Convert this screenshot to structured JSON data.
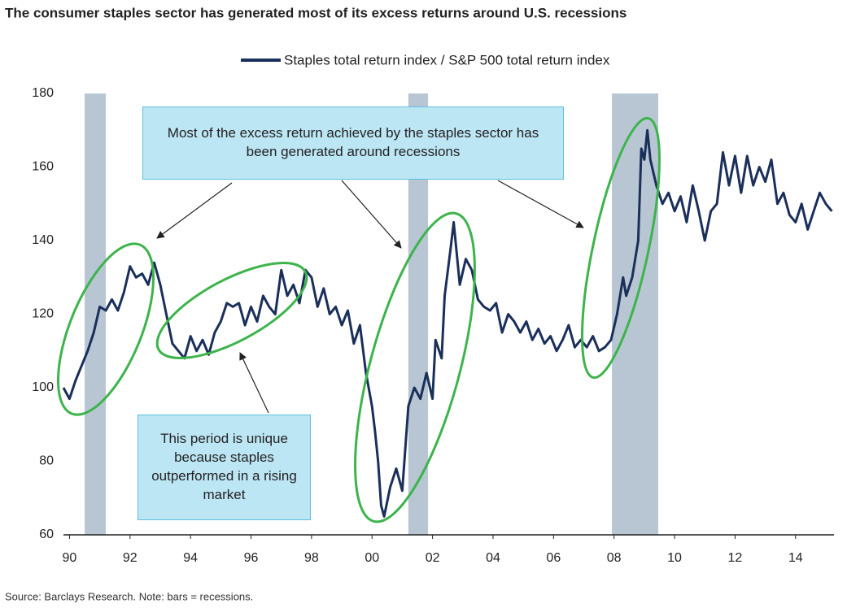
{
  "chart_data": {
    "type": "line",
    "title": "The consumer staples sector has generated most of its excess returns around U.S. recessions",
    "source": "Source: Barclays Research. Note: bars = recessions.",
    "legend": "top",
    "x": [
      1989.8,
      1990.0,
      1990.2,
      1990.4,
      1990.6,
      1990.8,
      1991.0,
      1991.2,
      1991.4,
      1991.6,
      1991.8,
      1992.0,
      1992.2,
      1992.4,
      1992.6,
      1992.8,
      1993.0,
      1993.2,
      1993.4,
      1993.6,
      1993.8,
      1994.0,
      1994.2,
      1994.4,
      1994.6,
      1994.8,
      1995.0,
      1995.2,
      1995.4,
      1995.6,
      1995.8,
      1996.0,
      1996.2,
      1996.4,
      1996.6,
      1996.8,
      1997.0,
      1997.2,
      1997.4,
      1997.6,
      1997.8,
      1998.0,
      1998.2,
      1998.4,
      1998.6,
      1998.8,
      1999.0,
      1999.2,
      1999.4,
      1999.6,
      1999.8,
      2000.0,
      2000.1,
      2000.2,
      2000.3,
      2000.4,
      2000.6,
      2000.8,
      2001.0,
      2001.2,
      2001.4,
      2001.6,
      2001.8,
      2002.0,
      2002.1,
      2002.3,
      2002.4,
      2002.6,
      2002.7,
      2002.9,
      2003.1,
      2003.3,
      2003.5,
      2003.7,
      2003.9,
      2004.1,
      2004.3,
      2004.5,
      2004.7,
      2004.9,
      2005.1,
      2005.3,
      2005.5,
      2005.7,
      2005.9,
      2006.1,
      2006.3,
      2006.5,
      2006.7,
      2006.9,
      2007.1,
      2007.3,
      2007.5,
      2007.7,
      2007.9,
      2008.1,
      2008.3,
      2008.4,
      2008.6,
      2008.8,
      2008.9,
      2009.0,
      2009.1,
      2009.2,
      2009.4,
      2009.6,
      2009.8,
      2010.0,
      2010.2,
      2010.4,
      2010.6,
      2010.8,
      2011.0,
      2011.2,
      2011.4,
      2011.6,
      2011.8,
      2012.0,
      2012.2,
      2012.4,
      2012.6,
      2012.8,
      2013.0,
      2013.2,
      2013.4,
      2013.6,
      2013.8,
      2014.0,
      2014.2,
      2014.4,
      2014.6,
      2014.8,
      2015.0,
      2015.2
    ],
    "series": [
      {
        "name": "Staples total return index / S&P 500 total return index",
        "color": "#1a2f5a",
        "values": [
          100,
          97,
          102,
          106,
          110,
          115,
          122,
          121,
          124,
          121,
          126,
          133,
          130,
          131,
          128,
          134,
          128,
          120,
          112,
          110,
          108,
          114,
          110,
          113,
          109,
          115,
          118,
          123,
          122,
          123,
          117,
          122,
          118,
          125,
          122,
          120,
          132,
          125,
          128,
          123,
          132,
          130,
          122,
          127,
          120,
          122,
          117,
          121,
          112,
          117,
          104,
          95,
          88,
          80,
          68,
          65,
          73,
          78,
          72,
          95,
          100,
          97,
          104,
          97,
          113,
          108,
          125,
          138,
          145,
          128,
          135,
          132,
          124,
          122,
          121,
          123,
          115,
          120,
          118,
          115,
          118,
          113,
          116,
          112,
          114,
          110,
          113,
          117,
          111,
          113,
          111,
          114,
          110,
          111,
          113,
          120,
          130,
          125,
          130,
          140,
          165,
          162,
          170,
          162,
          155,
          150,
          153,
          148,
          152,
          145,
          155,
          148,
          140,
          148,
          150,
          164,
          155,
          163,
          153,
          163,
          155,
          160,
          156,
          162,
          150,
          153,
          147,
          145,
          150,
          143,
          148,
          153,
          150,
          148
        ]
      }
    ],
    "recessions": [
      [
        1990.5,
        1991.2
      ],
      [
        2001.2,
        2001.85
      ],
      [
        2007.93,
        2009.46
      ]
    ],
    "recession_color": "#b8c6d3",
    "xlim": [
      1989.8,
      2015.27
    ],
    "xticks": [
      {
        "value": 1990,
        "label": "90"
      },
      {
        "value": 1992,
        "label": "92"
      },
      {
        "value": 1994,
        "label": "94"
      },
      {
        "value": 1996,
        "label": "96"
      },
      {
        "value": 1998,
        "label": "98"
      },
      {
        "value": 2000,
        "label": "00"
      },
      {
        "value": 2002,
        "label": "02"
      },
      {
        "value": 2004,
        "label": "04"
      },
      {
        "value": 2006,
        "label": "06"
      },
      {
        "value": 2008,
        "label": "08"
      },
      {
        "value": 2010,
        "label": "10"
      },
      {
        "value": 2012,
        "label": "12"
      },
      {
        "value": 2014,
        "label": "14"
      }
    ],
    "ylim": [
      60,
      180
    ],
    "yticks": [
      60,
      80,
      100,
      120,
      140,
      160,
      180
    ],
    "annotations": [
      "Most of the excess return achieved by the staples sector has been generated around recessions",
      "This period is unique because staples outperformed in a rising market"
    ]
  }
}
